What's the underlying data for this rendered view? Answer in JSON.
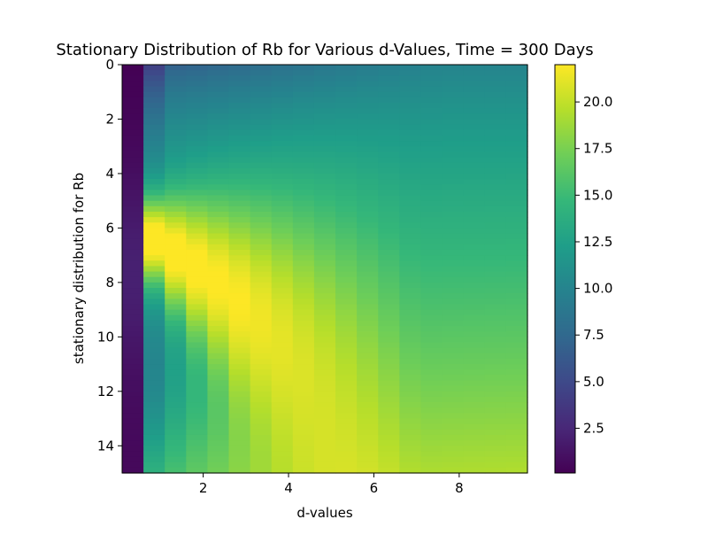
{
  "chart_data": {
    "type": "heatmap",
    "title": "Stationary Distribution of Rb for Various d-Values, Time = 300 Days",
    "xlabel": "d-values",
    "ylabel": "stationary distribution for Rb",
    "x_range": [
      0.1,
      9.6
    ],
    "y_range": [
      0,
      15
    ],
    "y_inverted": true,
    "x_ticks": [
      {
        "value": 2,
        "label": "2"
      },
      {
        "value": 4,
        "label": "4"
      },
      {
        "value": 6,
        "label": "6"
      },
      {
        "value": 8,
        "label": "8"
      }
    ],
    "y_ticks": [
      {
        "value": 0,
        "label": "0"
      },
      {
        "value": 2,
        "label": "2"
      },
      {
        "value": 4,
        "label": "4"
      },
      {
        "value": 6,
        "label": "6"
      },
      {
        "value": 8,
        "label": "8"
      },
      {
        "value": 10,
        "label": "10"
      },
      {
        "value": 12,
        "label": "12"
      },
      {
        "value": 14,
        "label": "14"
      }
    ],
    "d_values": [
      0.35,
      0.85,
      1.35,
      1.85,
      2.35,
      2.85,
      3.35,
      3.85,
      4.35,
      4.85,
      5.35,
      5.85,
      6.35,
      6.85,
      7.35,
      7.85,
      8.35,
      8.85,
      9.35
    ],
    "colorbar": {
      "colormap": "viridis",
      "vmin": 0.1,
      "vmax": 22.0,
      "ticks": [
        {
          "value": 2.5,
          "label": "2.5"
        },
        {
          "value": 5.0,
          "label": "5.0"
        },
        {
          "value": 7.5,
          "label": "7.5"
        },
        {
          "value": 10.0,
          "label": "10.0"
        },
        {
          "value": 12.5,
          "label": "12.5"
        },
        {
          "value": 15.0,
          "label": "15.0"
        },
        {
          "value": 17.5,
          "label": "17.5"
        },
        {
          "value": 20.0,
          "label": "20.0"
        }
      ]
    },
    "grid": false
  }
}
